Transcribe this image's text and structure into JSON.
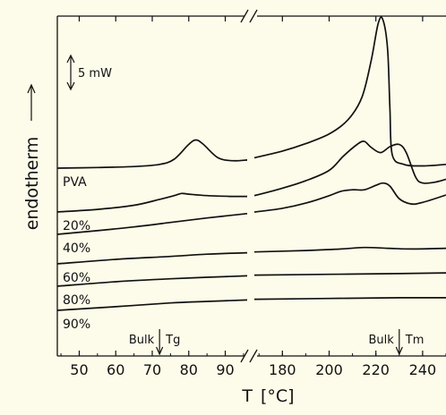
{
  "chart_data": {
    "type": "line",
    "title": "",
    "xlabel": "T",
    "xlabel_unit": "[°C]",
    "ylabel": "endotherm",
    "scale_bar_label": "5 mW",
    "x_axis_break": true,
    "x_ticks_left": [
      "50",
      "60",
      "70",
      "80",
      "90"
    ],
    "x_ticks_right": [
      "180",
      "200",
      "220",
      "240"
    ],
    "xlim_left": [
      44,
      96
    ],
    "xlim_right": [
      168,
      250
    ],
    "grid": false,
    "legend": "none",
    "annotations": [
      {
        "text_a": "Bulk",
        "text_b": "Tg",
        "x": 72,
        "segment": "left"
      },
      {
        "text_a": "Bulk",
        "text_b": "Tm",
        "x": 230,
        "segment": "right"
      }
    ],
    "series": [
      {
        "name": "PVA",
        "left": [
          [
            44,
            0.0
          ],
          [
            55,
            0.08
          ],
          [
            65,
            0.22
          ],
          [
            72,
            0.5
          ],
          [
            76,
            1.2
          ],
          [
            80,
            3.2
          ],
          [
            82,
            3.8
          ],
          [
            84,
            3.2
          ],
          [
            88,
            1.4
          ],
          [
            92,
            1.0
          ],
          [
            96,
            1.1
          ]
        ],
        "right": [
          [
            168,
            1.4
          ],
          [
            180,
            2.3
          ],
          [
            190,
            3.3
          ],
          [
            200,
            4.6
          ],
          [
            208,
            6.5
          ],
          [
            214,
            9.5
          ],
          [
            218,
            14.5
          ],
          [
            221,
            19.5
          ],
          [
            223,
            20.0
          ],
          [
            225,
            16.0
          ],
          [
            226,
            8.0
          ],
          [
            227,
            1.8
          ],
          [
            232,
            0.5
          ],
          [
            240,
            0.3
          ],
          [
            250,
            0.5
          ]
        ]
      },
      {
        "name": "20%",
        "left": [
          [
            44,
            0.0
          ],
          [
            55,
            0.35
          ],
          [
            65,
            0.9
          ],
          [
            72,
            1.7
          ],
          [
            76,
            2.2
          ],
          [
            78,
            2.5
          ],
          [
            80,
            2.4
          ],
          [
            85,
            2.2
          ],
          [
            92,
            2.1
          ],
          [
            96,
            2.1
          ]
        ],
        "right": [
          [
            168,
            2.2
          ],
          [
            180,
            3.2
          ],
          [
            190,
            4.2
          ],
          [
            200,
            5.6
          ],
          [
            206,
            7.5
          ],
          [
            212,
            9.1
          ],
          [
            215,
            9.5
          ],
          [
            218,
            8.7
          ],
          [
            222,
            8.0
          ],
          [
            226,
            8.8
          ],
          [
            230,
            9.1
          ],
          [
            233,
            8.0
          ],
          [
            237,
            4.7
          ],
          [
            240,
            3.9
          ],
          [
            245,
            4.0
          ],
          [
            250,
            4.4
          ]
        ]
      },
      {
        "name": "40%",
        "left": [
          [
            44,
            0.0
          ],
          [
            55,
            0.5
          ],
          [
            65,
            1.0
          ],
          [
            75,
            1.6
          ],
          [
            85,
            2.2
          ],
          [
            96,
            2.8
          ]
        ],
        "right": [
          [
            168,
            3.0
          ],
          [
            180,
            3.5
          ],
          [
            190,
            4.2
          ],
          [
            200,
            5.2
          ],
          [
            205,
            5.8
          ],
          [
            210,
            6.0
          ],
          [
            215,
            6.0
          ],
          [
            220,
            6.6
          ],
          [
            223,
            6.9
          ],
          [
            226,
            6.5
          ],
          [
            230,
            4.8
          ],
          [
            235,
            4.1
          ],
          [
            240,
            4.3
          ],
          [
            250,
            5.3
          ]
        ]
      },
      {
        "name": "60%",
        "left": [
          [
            44,
            0.0
          ],
          [
            60,
            0.6
          ],
          [
            75,
            1.0
          ],
          [
            85,
            1.3
          ],
          [
            96,
            1.5
          ]
        ],
        "right": [
          [
            168,
            1.6
          ],
          [
            190,
            1.8
          ],
          [
            205,
            2.0
          ],
          [
            215,
            2.2
          ],
          [
            225,
            2.1
          ],
          [
            235,
            2.0
          ],
          [
            250,
            2.1
          ]
        ]
      },
      {
        "name": "80%",
        "left": [
          [
            44,
            0.0
          ],
          [
            60,
            0.6
          ],
          [
            75,
            1.0
          ],
          [
            85,
            1.2
          ],
          [
            96,
            1.4
          ]
        ],
        "right": [
          [
            168,
            1.5
          ],
          [
            200,
            1.6
          ],
          [
            230,
            1.7
          ],
          [
            250,
            1.8
          ]
        ]
      },
      {
        "name": "90%",
        "left": [
          [
            44,
            0.0
          ],
          [
            60,
            0.5
          ],
          [
            75,
            1.0
          ],
          [
            85,
            1.2
          ],
          [
            96,
            1.4
          ]
        ],
        "right": [
          [
            168,
            1.5
          ],
          [
            200,
            1.6
          ],
          [
            230,
            1.7
          ],
          [
            250,
            1.7
          ]
        ]
      }
    ]
  }
}
